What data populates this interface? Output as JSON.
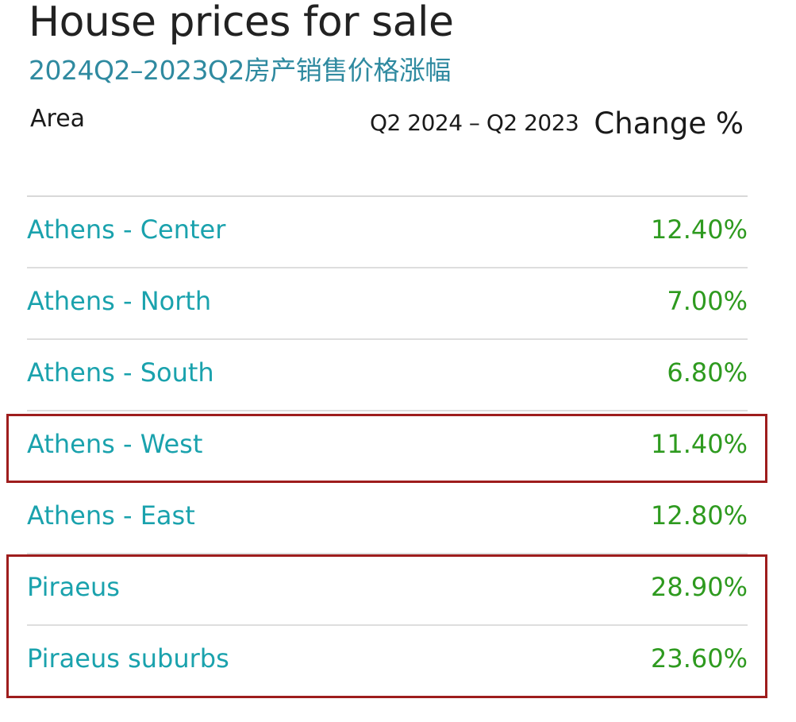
{
  "title": "House prices for sale",
  "subtitle": "2024Q2–2023Q2房产销售价格涨幅",
  "header": {
    "area": "Area",
    "period": "Q2 2024 – Q2 2023",
    "change": "Change %"
  },
  "colors": {
    "area_text": "#1aa2ad",
    "value_text": "#2e9a1f",
    "highlight": "#9e1d1d"
  },
  "chart_data": {
    "type": "table",
    "columns": [
      "Area",
      "Q2 2024 – Q2 2023 Change %"
    ],
    "rows": [
      {
        "area": "Athens - Center",
        "value": "12.40%",
        "number": 12.4,
        "highlighted": false
      },
      {
        "area": "Athens - North",
        "value": "7.00%",
        "number": 7.0,
        "highlighted": false
      },
      {
        "area": "Athens - South",
        "value": "6.80%",
        "number": 6.8,
        "highlighted": false
      },
      {
        "area": "Athens - West",
        "value": "11.40%",
        "number": 11.4,
        "highlighted": true
      },
      {
        "area": "Athens - East",
        "value": "12.80%",
        "number": 12.8,
        "highlighted": false
      },
      {
        "area": "Piraeus",
        "value": "28.90%",
        "number": 28.9,
        "highlighted": true
      },
      {
        "area": "Piraeus suburbs",
        "value": "23.60%",
        "number": 23.6,
        "highlighted": true
      }
    ]
  }
}
